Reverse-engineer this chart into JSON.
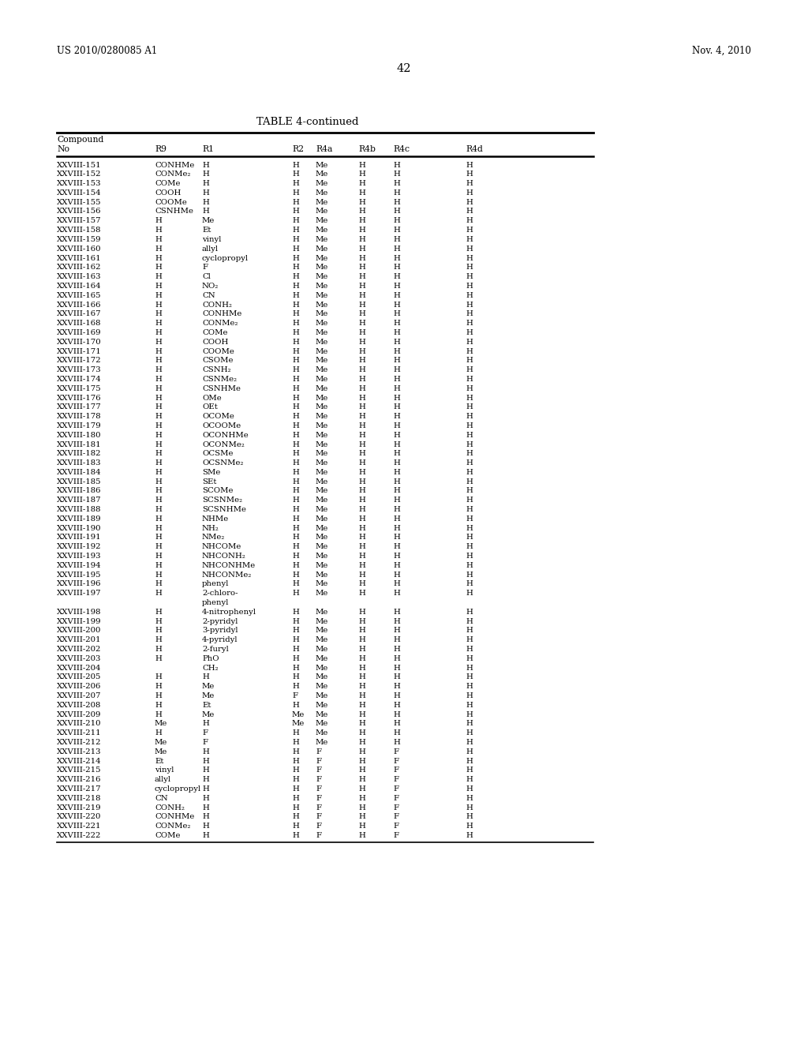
{
  "header_left": "US 2010/0280085 A1",
  "header_right": "Nov. 4, 2010",
  "page_number": "42",
  "table_title": "TABLE 4-continued",
  "rows": [
    [
      "XXVIII-151",
      "CONHMe",
      "H",
      "H",
      "Me",
      "H",
      "H",
      "H"
    ],
    [
      "XXVIII-152",
      "CONMe₂",
      "H",
      "H",
      "Me",
      "H",
      "H",
      "H"
    ],
    [
      "XXVIII-153",
      "COMe",
      "H",
      "H",
      "Me",
      "H",
      "H",
      "H"
    ],
    [
      "XXVIII-154",
      "COOH",
      "H",
      "H",
      "Me",
      "H",
      "H",
      "H"
    ],
    [
      "XXVIII-155",
      "COOMe",
      "H",
      "H",
      "Me",
      "H",
      "H",
      "H"
    ],
    [
      "XXVIII-156",
      "CSNHMe",
      "H",
      "H",
      "Me",
      "H",
      "H",
      "H"
    ],
    [
      "XXVIII-157",
      "H",
      "Me",
      "H",
      "Me",
      "H",
      "H",
      "H"
    ],
    [
      "XXVIII-158",
      "H",
      "Et",
      "H",
      "Me",
      "H",
      "H",
      "H"
    ],
    [
      "XXVIII-159",
      "H",
      "vinyl",
      "H",
      "Me",
      "H",
      "H",
      "H"
    ],
    [
      "XXVIII-160",
      "H",
      "allyl",
      "H",
      "Me",
      "H",
      "H",
      "H"
    ],
    [
      "XXVIII-161",
      "H",
      "cyclopropyl",
      "H",
      "Me",
      "H",
      "H",
      "H"
    ],
    [
      "XXVIII-162",
      "H",
      "F",
      "H",
      "Me",
      "H",
      "H",
      "H"
    ],
    [
      "XXVIII-163",
      "H",
      "Cl",
      "H",
      "Me",
      "H",
      "H",
      "H"
    ],
    [
      "XXVIII-164",
      "H",
      "NO₂",
      "H",
      "Me",
      "H",
      "H",
      "H"
    ],
    [
      "XXVIII-165",
      "H",
      "CN",
      "H",
      "Me",
      "H",
      "H",
      "H"
    ],
    [
      "XXVIII-166",
      "H",
      "CONH₂",
      "H",
      "Me",
      "H",
      "H",
      "H"
    ],
    [
      "XXVIII-167",
      "H",
      "CONHMe",
      "H",
      "Me",
      "H",
      "H",
      "H"
    ],
    [
      "XXVIII-168",
      "H",
      "CONMe₂",
      "H",
      "Me",
      "H",
      "H",
      "H"
    ],
    [
      "XXVIII-169",
      "H",
      "COMe",
      "H",
      "Me",
      "H",
      "H",
      "H"
    ],
    [
      "XXVIII-170",
      "H",
      "COOH",
      "H",
      "Me",
      "H",
      "H",
      "H"
    ],
    [
      "XXVIII-171",
      "H",
      "COOMe",
      "H",
      "Me",
      "H",
      "H",
      "H"
    ],
    [
      "XXVIII-172",
      "H",
      "CSOMe",
      "H",
      "Me",
      "H",
      "H",
      "H"
    ],
    [
      "XXVIII-173",
      "H",
      "CSNH₂",
      "H",
      "Me",
      "H",
      "H",
      "H"
    ],
    [
      "XXVIII-174",
      "H",
      "CSNMe₂",
      "H",
      "Me",
      "H",
      "H",
      "H"
    ],
    [
      "XXVIII-175",
      "H",
      "CSNHMe",
      "H",
      "Me",
      "H",
      "H",
      "H"
    ],
    [
      "XXVIII-176",
      "H",
      "OMe",
      "H",
      "Me",
      "H",
      "H",
      "H"
    ],
    [
      "XXVIII-177",
      "H",
      "OEt",
      "H",
      "Me",
      "H",
      "H",
      "H"
    ],
    [
      "XXVIII-178",
      "H",
      "OCOMe",
      "H",
      "Me",
      "H",
      "H",
      "H"
    ],
    [
      "XXVIII-179",
      "H",
      "OCOOMe",
      "H",
      "Me",
      "H",
      "H",
      "H"
    ],
    [
      "XXVIII-180",
      "H",
      "OCONHMe",
      "H",
      "Me",
      "H",
      "H",
      "H"
    ],
    [
      "XXVIII-181",
      "H",
      "OCONMe₂",
      "H",
      "Me",
      "H",
      "H",
      "H"
    ],
    [
      "XXVIII-182",
      "H",
      "OCSMe",
      "H",
      "Me",
      "H",
      "H",
      "H"
    ],
    [
      "XXVIII-183",
      "H",
      "OCSNMe₂",
      "H",
      "Me",
      "H",
      "H",
      "H"
    ],
    [
      "XXVIII-184",
      "H",
      "SMe",
      "H",
      "Me",
      "H",
      "H",
      "H"
    ],
    [
      "XXVIII-185",
      "H",
      "SEt",
      "H",
      "Me",
      "H",
      "H",
      "H"
    ],
    [
      "XXVIII-186",
      "H",
      "SCOMe",
      "H",
      "Me",
      "H",
      "H",
      "H"
    ],
    [
      "XXVIII-187",
      "H",
      "SCSNMe₂",
      "H",
      "Me",
      "H",
      "H",
      "H"
    ],
    [
      "XXVIII-188",
      "H",
      "SCSNHMe",
      "H",
      "Me",
      "H",
      "H",
      "H"
    ],
    [
      "XXVIII-189",
      "H",
      "NHMe",
      "H",
      "Me",
      "H",
      "H",
      "H"
    ],
    [
      "XXVIII-190",
      "H",
      "NH₂",
      "H",
      "Me",
      "H",
      "H",
      "H"
    ],
    [
      "XXVIII-191",
      "H",
      "NMe₂",
      "H",
      "Me",
      "H",
      "H",
      "H"
    ],
    [
      "XXVIII-192",
      "H",
      "NHCOMe",
      "H",
      "Me",
      "H",
      "H",
      "H"
    ],
    [
      "XXVIII-193",
      "H",
      "NHCONH₂",
      "H",
      "Me",
      "H",
      "H",
      "H"
    ],
    [
      "XXVIII-194",
      "H",
      "NHCONHMe",
      "H",
      "Me",
      "H",
      "H",
      "H"
    ],
    [
      "XXVIII-195",
      "H",
      "NHCONMe₂",
      "H",
      "Me",
      "H",
      "H",
      "H"
    ],
    [
      "XXVIII-196",
      "H",
      "phenyl",
      "H",
      "Me",
      "H",
      "H",
      "H"
    ],
    [
      "XXVIII-197",
      "H",
      "2-chloro-\nphenyl",
      "H",
      "Me",
      "H",
      "H",
      "H"
    ],
    [
      "XXVIII-198",
      "H",
      "4-nitrophenyl",
      "H",
      "Me",
      "H",
      "H",
      "H"
    ],
    [
      "XXVIII-199",
      "H",
      "2-pyridyl",
      "H",
      "Me",
      "H",
      "H",
      "H"
    ],
    [
      "XXVIII-200",
      "H",
      "3-pyridyl",
      "H",
      "Me",
      "H",
      "H",
      "H"
    ],
    [
      "XXVIII-201",
      "H",
      "4-pyridyl",
      "H",
      "Me",
      "H",
      "H",
      "H"
    ],
    [
      "XXVIII-202",
      "H",
      "2-furyl",
      "H",
      "Me",
      "H",
      "H",
      "H"
    ],
    [
      "XXVIII-203",
      "H",
      "PhO",
      "H",
      "Me",
      "H",
      "H",
      "H"
    ],
    [
      "XXVIII-204",
      "",
      "CH₂",
      "H",
      "Me",
      "H",
      "H",
      "H"
    ],
    [
      "XXVIII-205",
      "H",
      "H",
      "H",
      "Me",
      "H",
      "H",
      "H"
    ],
    [
      "XXVIII-206",
      "H",
      "Me",
      "H",
      "Me",
      "H",
      "H",
      "H"
    ],
    [
      "XXVIII-207",
      "H",
      "Me",
      "F",
      "Me",
      "H",
      "H",
      "H"
    ],
    [
      "XXVIII-208",
      "H",
      "Et",
      "H",
      "Me",
      "H",
      "H",
      "H"
    ],
    [
      "XXVIII-209",
      "H",
      "Me",
      "Me",
      "Me",
      "H",
      "H",
      "H"
    ],
    [
      "XXVIII-210",
      "Me",
      "H",
      "Me",
      "Me",
      "H",
      "H",
      "H"
    ],
    [
      "XXVIII-211",
      "H",
      "F",
      "H",
      "Me",
      "H",
      "H",
      "H"
    ],
    [
      "XXVIII-212",
      "Me",
      "F",
      "H",
      "Me",
      "H",
      "H",
      "H"
    ],
    [
      "XXVIII-213",
      "Me",
      "H",
      "H",
      "F",
      "H",
      "F",
      "H"
    ],
    [
      "XXVIII-214",
      "Et",
      "H",
      "H",
      "F",
      "H",
      "F",
      "H"
    ],
    [
      "XXVIII-215",
      "vinyl",
      "H",
      "H",
      "F",
      "H",
      "F",
      "H"
    ],
    [
      "XXVIII-216",
      "allyl",
      "H",
      "H",
      "F",
      "H",
      "F",
      "H"
    ],
    [
      "XXVIII-217",
      "cyclopropyl",
      "H",
      "H",
      "F",
      "H",
      "F",
      "H"
    ],
    [
      "XXVIII-218",
      "CN",
      "H",
      "H",
      "F",
      "H",
      "F",
      "H"
    ],
    [
      "XXVIII-219",
      "CONH₂",
      "H",
      "H",
      "F",
      "H",
      "F",
      "H"
    ],
    [
      "XXVIII-220",
      "CONHMe",
      "H",
      "H",
      "F",
      "H",
      "F",
      "H"
    ],
    [
      "XXVIII-221",
      "CONMe₂",
      "H",
      "H",
      "F",
      "H",
      "F",
      "H"
    ],
    [
      "XXVIII-222",
      "COMe",
      "H",
      "H",
      "F",
      "H",
      "F",
      "H"
    ]
  ]
}
